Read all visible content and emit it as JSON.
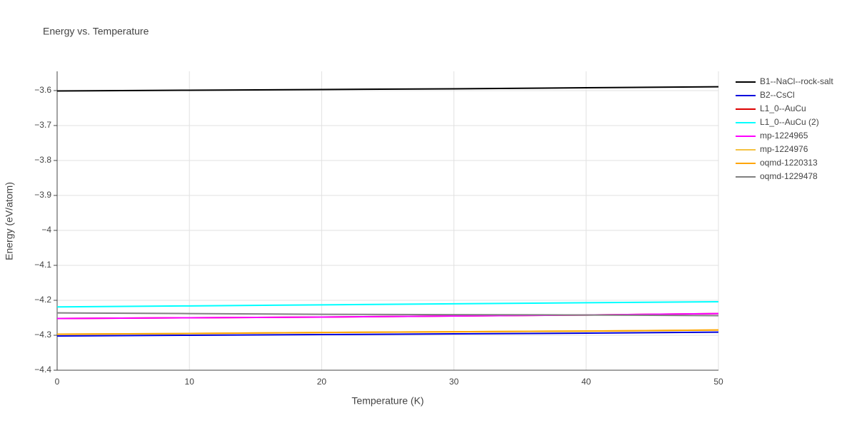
{
  "chart_data": {
    "type": "line",
    "title": "Energy vs. Temperature",
    "xlabel": "Temperature (K)",
    "ylabel": "Energy (eV/atom)",
    "x": [
      0,
      10,
      20,
      30,
      40,
      50
    ],
    "xlim": [
      0,
      50
    ],
    "xticks": [
      0,
      10,
      20,
      30,
      40,
      50
    ],
    "ylim": [
      -4.4,
      -3.545
    ],
    "yticks": [
      {
        "value": -4.4,
        "label": "−4.4"
      },
      {
        "value": -4.3,
        "label": "−4.3"
      },
      {
        "value": -4.2,
        "label": "−4.2"
      },
      {
        "value": -4.1,
        "label": "−4.1"
      },
      {
        "value": -4,
        "label": "−4"
      },
      {
        "value": -3.9,
        "label": "−3.9"
      },
      {
        "value": -3.8,
        "label": "−3.8"
      },
      {
        "value": -3.7,
        "label": "−3.7"
      },
      {
        "value": -3.6,
        "label": "−3.6"
      }
    ],
    "grid": true,
    "series": [
      {
        "name": "B1--NaCl--rock-salt",
        "color": "#000000",
        "values": [
          -3.601,
          -3.599,
          -3.597,
          -3.595,
          -3.592,
          -3.589
        ]
      },
      {
        "name": "B2--CsCl",
        "color": "#0000dd",
        "values": [
          -4.302,
          -4.3,
          -4.298,
          -4.296,
          -4.294,
          -4.291
        ]
      },
      {
        "name": "L1_0--AuCu",
        "color": "#dd0000",
        "values": [
          -4.252,
          -4.25,
          -4.248,
          -4.245,
          -4.242,
          -4.238
        ]
      },
      {
        "name": "L1_0--AuCu (2)",
        "color": "#00ffff",
        "values": [
          -4.219,
          -4.216,
          -4.213,
          -4.21,
          -4.207,
          -4.204
        ]
      },
      {
        "name": "mp-1224965",
        "color": "#ff00ff",
        "values": [
          -4.252,
          -4.25,
          -4.248,
          -4.245,
          -4.242,
          -4.238
        ]
      },
      {
        "name": "mp-1224976",
        "color": "#f5c242",
        "values": [
          -4.297,
          -4.295,
          -4.292,
          -4.29,
          -4.288,
          -4.285
        ]
      },
      {
        "name": "oqmd-1220313",
        "color": "#ffa500",
        "values": [
          -4.297,
          -4.295,
          -4.292,
          -4.29,
          -4.288,
          -4.285
        ]
      },
      {
        "name": "oqmd-1229478",
        "color": "#808080",
        "values": [
          -4.236,
          -4.238,
          -4.24,
          -4.241,
          -4.242,
          -4.244
        ]
      }
    ]
  }
}
